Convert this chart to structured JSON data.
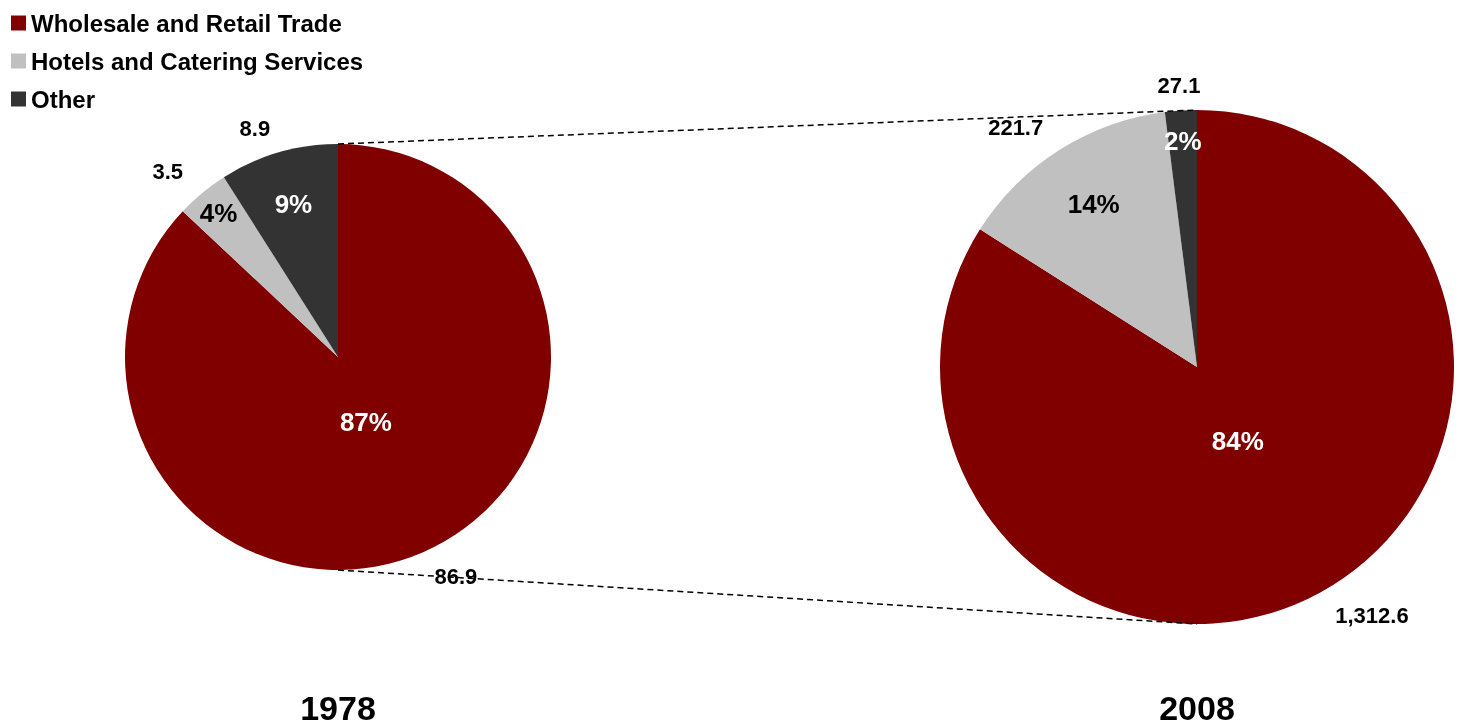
{
  "chart_data": [
    {
      "type": "pie",
      "xlabel": "1978",
      "categories": [
        "Wholesale and Retail Trade",
        "Hotels and Catering Services",
        "Other"
      ],
      "values": [
        87,
        4,
        9
      ],
      "colors": [
        "#800000",
        "#c0c0c0",
        "#333333"
      ],
      "value_labels": [
        "87%",
        "4%",
        "9%"
      ],
      "annotations": [
        "86.9",
        "3.5",
        "8.9"
      ],
      "legend": "top left"
    },
    {
      "type": "pie",
      "xlabel": "2008",
      "categories": [
        null,
        null,
        null
      ],
      "values": [
        84,
        14,
        2
      ],
      "colors": [
        "#800000",
        "#c0c0c0",
        "#333333"
      ],
      "value_labels": [
        "84%",
        "14%",
        "2%"
      ],
      "annotations": [
        "1,312.6",
        "221.7",
        "27.1"
      ],
      "legend": false
    }
  ]
}
